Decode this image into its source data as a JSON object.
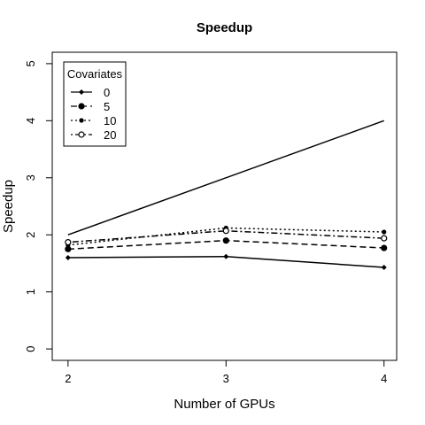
{
  "chart_data": {
    "type": "line",
    "title": "Speedup",
    "xlabel": "Number of GPUs",
    "ylabel": "Speedup",
    "x": [
      2,
      3,
      4
    ],
    "xticks": [
      "2",
      "3",
      "4"
    ],
    "yticks": [
      "0",
      "1",
      "2",
      "3",
      "4",
      "5"
    ],
    "xlim": [
      1.9,
      4.08
    ],
    "ylim": [
      -0.2,
      5.2
    ],
    "legend": {
      "title": "Covariates",
      "position": "top-left"
    },
    "reference_line": {
      "x": [
        2,
        4
      ],
      "y": [
        2,
        4
      ],
      "style": "solid"
    },
    "series": [
      {
        "name": "0",
        "values": [
          1.6,
          1.62,
          1.43
        ],
        "line": "solid",
        "marker": "diamond"
      },
      {
        "name": "5",
        "values": [
          1.75,
          1.9,
          1.77
        ],
        "line": "dashed",
        "marker": "big-dot"
      },
      {
        "name": "10",
        "values": [
          1.82,
          2.12,
          2.05
        ],
        "line": "dotted",
        "marker": "small-dot"
      },
      {
        "name": "20",
        "values": [
          1.87,
          2.07,
          1.94
        ],
        "line": "dotdash",
        "marker": "open-circle"
      }
    ],
    "grid": false,
    "colors": {
      "line": "#000000",
      "background": "#ffffff"
    }
  }
}
